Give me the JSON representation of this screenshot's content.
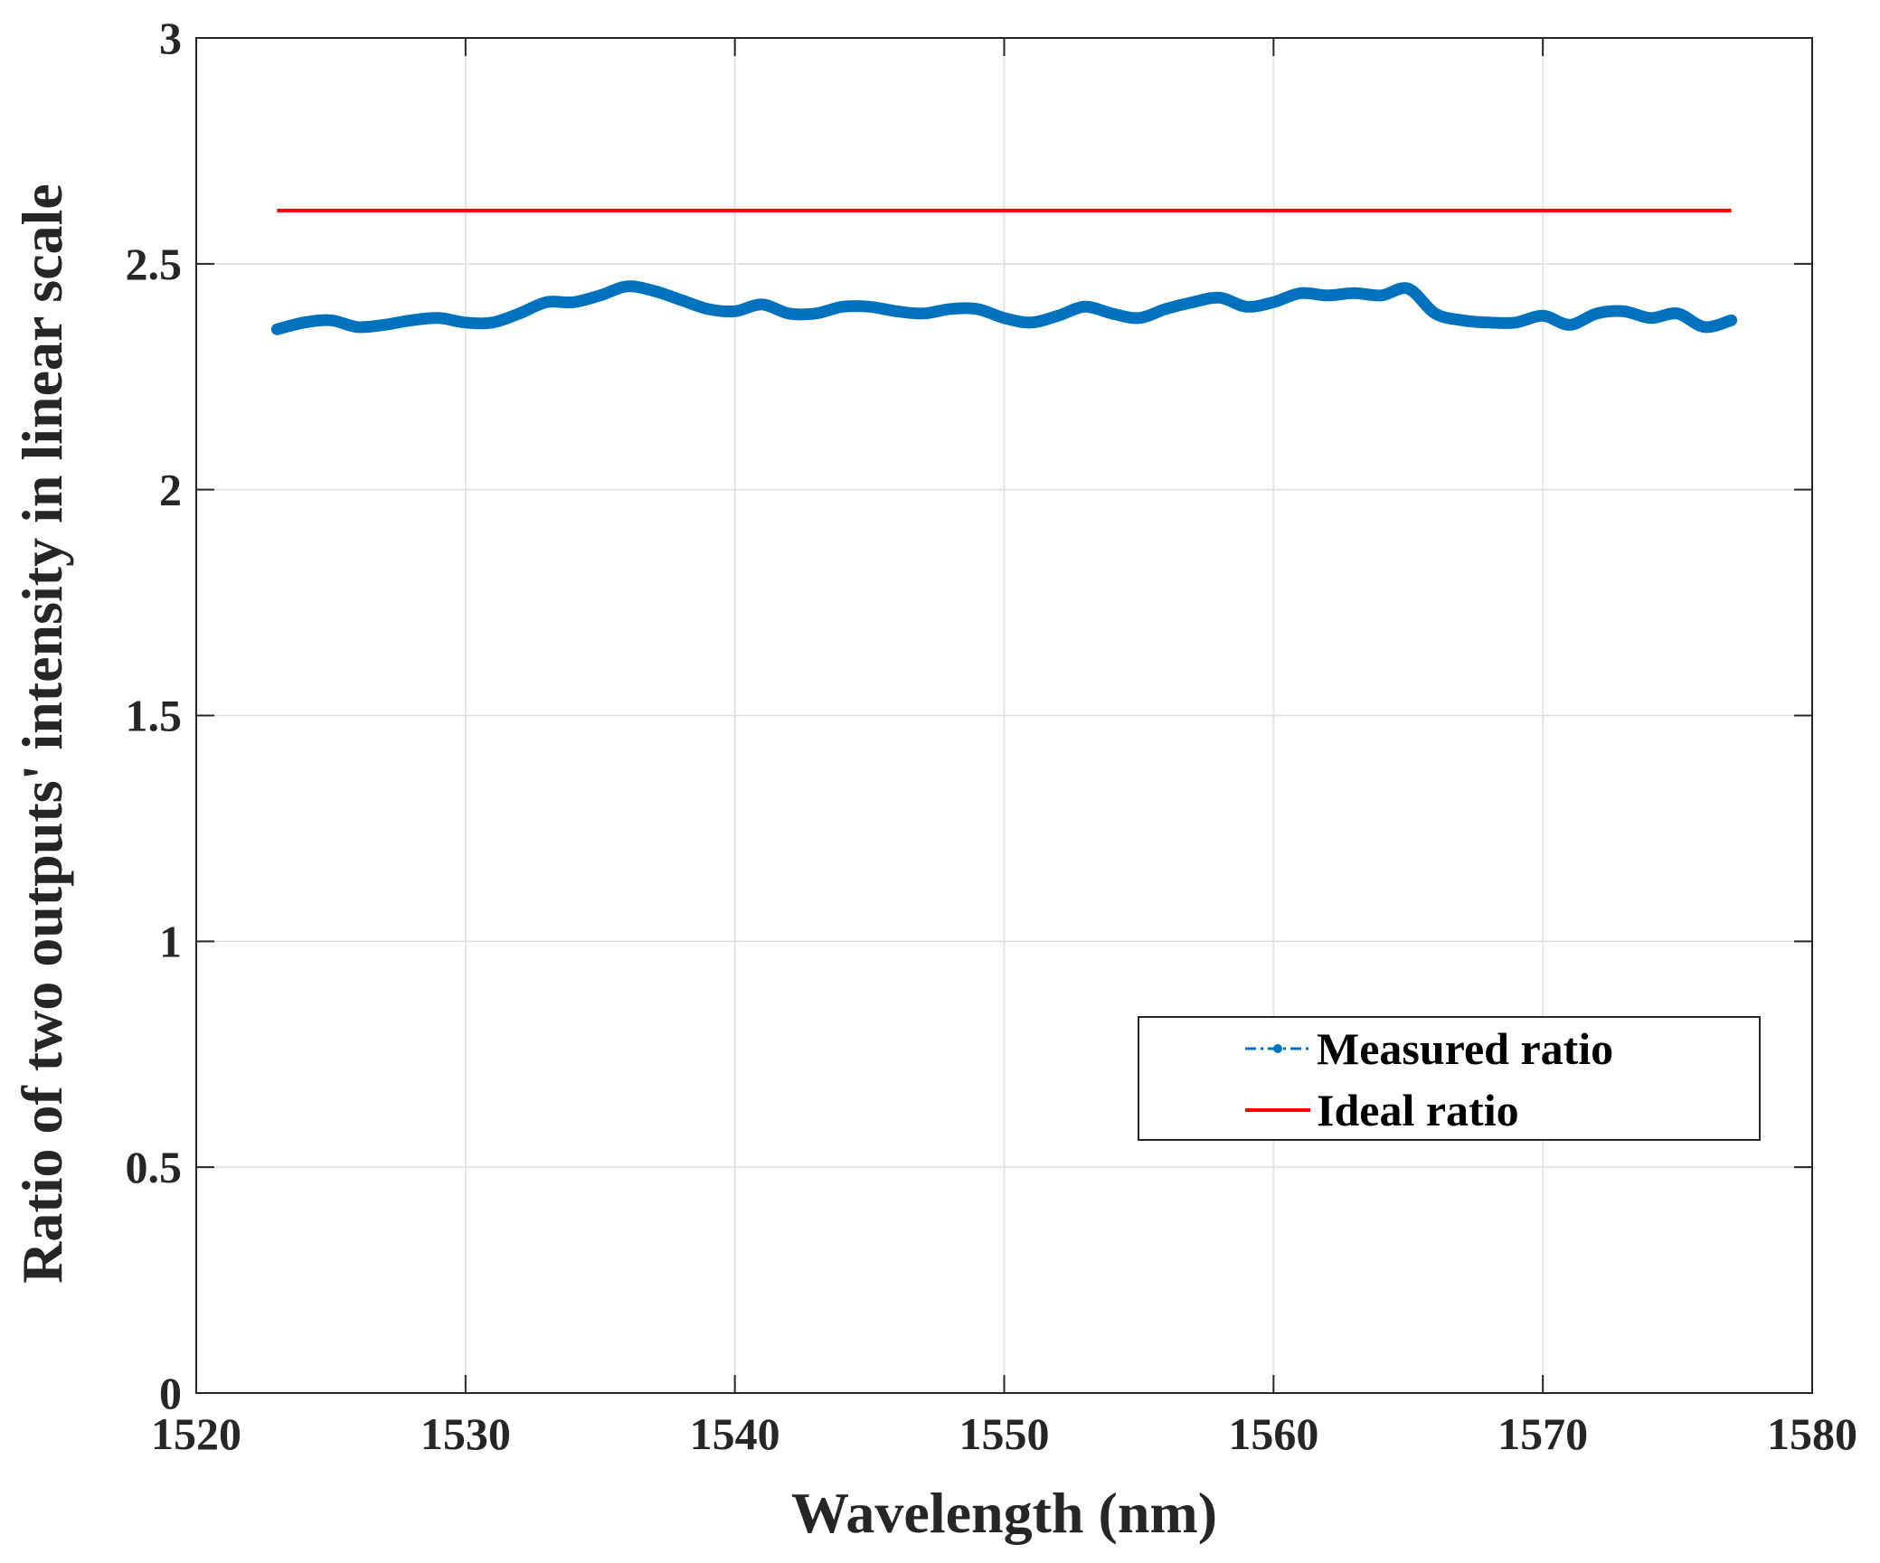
{
  "chart_data": {
    "type": "line",
    "title": "",
    "xlabel": "Wavelength (nm)",
    "ylabel": "Ratio of two outputs' intensity in linear scale",
    "xlim": [
      1520,
      1580
    ],
    "ylim": [
      0,
      3
    ],
    "xticks": [
      1520,
      1530,
      1540,
      1550,
      1560,
      1570,
      1580
    ],
    "xtick_labels": [
      "1520",
      "1530",
      "1540",
      "1550",
      "1560",
      "1570",
      "1580"
    ],
    "yticks": [
      0,
      0.5,
      1,
      1.5,
      2,
      2.5,
      3
    ],
    "ytick_labels": [
      "0",
      "0.5",
      "1",
      "1.5",
      "2",
      "2.5",
      "3"
    ],
    "grid": true,
    "legend_position": "lower-right",
    "series": [
      {
        "name": "Measured ratio",
        "color": "#0072bd",
        "style": "dash-dot with dot markers (drawn thick)",
        "x": [
          1523,
          1524,
          1525,
          1526,
          1527,
          1528,
          1529,
          1530,
          1531,
          1532,
          1533,
          1534,
          1535,
          1536,
          1537,
          1538,
          1539,
          1540,
          1541,
          1542,
          1543,
          1544,
          1545,
          1546,
          1547,
          1548,
          1549,
          1550,
          1551,
          1552,
          1553,
          1554,
          1555,
          1556,
          1557,
          1558,
          1559,
          1560,
          1561,
          1562,
          1563,
          1564,
          1565,
          1566,
          1567,
          1568,
          1569,
          1570,
          1571,
          1572,
          1573,
          1574,
          1575,
          1576,
          1577
        ],
        "y": [
          2.355,
          2.37,
          2.375,
          2.36,
          2.365,
          2.375,
          2.38,
          2.37,
          2.37,
          2.39,
          2.415,
          2.415,
          2.43,
          2.45,
          2.44,
          2.42,
          2.4,
          2.395,
          2.41,
          2.39,
          2.39,
          2.405,
          2.405,
          2.395,
          2.39,
          2.4,
          2.4,
          2.38,
          2.37,
          2.385,
          2.405,
          2.39,
          2.38,
          2.4,
          2.415,
          2.425,
          2.405,
          2.415,
          2.435,
          2.43,
          2.435,
          2.43,
          2.445,
          2.39,
          2.375,
          2.37,
          2.37,
          2.385,
          2.365,
          2.39,
          2.395,
          2.38,
          2.39,
          2.36,
          2.375
        ]
      },
      {
        "name": "Ideal ratio",
        "color": "#ff0000",
        "style": "solid",
        "x": [
          1523,
          1577
        ],
        "y": [
          2.618,
          2.618
        ]
      }
    ]
  }
}
